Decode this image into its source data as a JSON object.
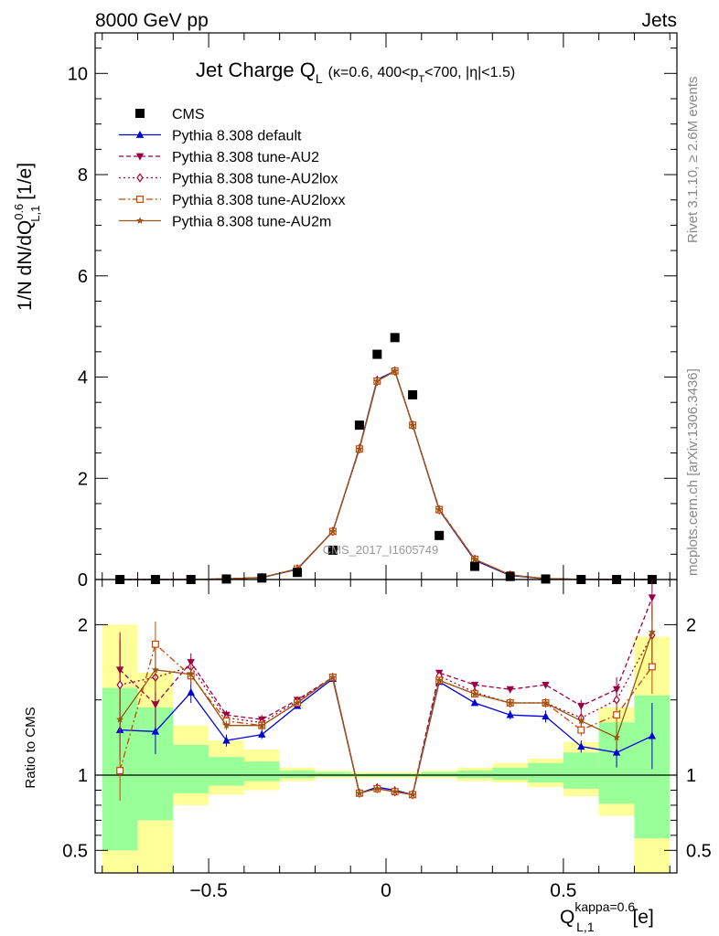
{
  "header": {
    "left": "8000 GeV pp",
    "right": "Jets"
  },
  "side_labels": {
    "rivet": "Rivet 3.1.10, ≥ 2.6M events",
    "mcplots": "mcplots.cern.ch [arXiv:1306.3436]"
  },
  "watermark": "CMS_2017_I1605749",
  "legend": [
    {
      "key": "cms",
      "label": "CMS"
    },
    {
      "key": "default",
      "label": "Pythia 8.308 default"
    },
    {
      "key": "au2",
      "label": "Pythia 8.308 tune-AU2"
    },
    {
      "key": "au2lox",
      "label": "Pythia 8.308 tune-AU2lox"
    },
    {
      "key": "au2loxx",
      "label": "Pythia 8.308 tune-AU2loxx"
    },
    {
      "key": "au2m",
      "label": "Pythia 8.308 tune-AU2m"
    }
  ],
  "colors": {
    "cms": "#000000",
    "default": "#0000dd",
    "au2": "#990044",
    "au2lox": "#aa0033",
    "au2loxx": "#cc4400",
    "au2m": "#995511",
    "band_inner": "#99ff99",
    "band_outer": "#ffff99"
  },
  "chart_data": {
    "type": "line",
    "title": {
      "main": "Jet Charge Q",
      "main_sub": "L",
      "cut": "(κ=0.6, 400<p",
      "cut_sub": "T",
      "cut_rest": "<700, |η|<1.5)"
    },
    "ylabel": {
      "pre": "1/N dN/dQ",
      "sup": "0.6",
      "sub": "L,1",
      "post": " [1/e]"
    },
    "xlabel": {
      "pre": "Q",
      "sup": "kappa=0.6",
      "sub": "L,1",
      "post": " [e]"
    },
    "ratio_ylabel": "Ratio to CMS",
    "xlim": [
      -0.82,
      0.82
    ],
    "ylim": [
      0,
      10.8
    ],
    "ratio_ylim": [
      0.35,
      2.3
    ],
    "xticks": [
      -0.5,
      0,
      0.5
    ],
    "xtick_labels": [
      "−0.5",
      "0",
      "0.5"
    ],
    "yticks": [
      0,
      2,
      4,
      6,
      8,
      10
    ],
    "ytick_labels": [
      "0",
      "2",
      "4",
      "6",
      "8",
      "10"
    ],
    "ratio_yticks": [
      0.5,
      1,
      2
    ],
    "ratio_ytick_labels": [
      "0.5",
      "1",
      "2"
    ],
    "x": [
      -0.75,
      -0.65,
      -0.55,
      -0.45,
      -0.35,
      -0.25,
      -0.15,
      -0.075,
      -0.025,
      0.025,
      0.075,
      0.15,
      0.25,
      0.35,
      0.45,
      0.55,
      0.65,
      0.75
    ],
    "bin_edges": [
      -0.8,
      -0.7,
      -0.6,
      -0.5,
      -0.4,
      -0.3,
      -0.2,
      -0.1,
      -0.05,
      0.0,
      0.05,
      0.1,
      0.2,
      0.3,
      0.4,
      0.5,
      0.6,
      0.7,
      0.8
    ],
    "cms": [
      0.0,
      0.0,
      0.0,
      0.01,
      0.03,
      0.14,
      0.58,
      3.05,
      4.45,
      4.78,
      3.65,
      0.87,
      0.26,
      0.06,
      0.01,
      0.0,
      0.0,
      0.0
    ],
    "band_inner": [
      [
        0.5,
        1.58
      ],
      [
        0.7,
        1.45
      ],
      [
        0.88,
        1.2
      ],
      [
        0.93,
        1.12
      ],
      [
        0.96,
        1.09
      ],
      [
        0.98,
        1.03
      ],
      [
        0.99,
        1.02
      ],
      [
        0.99,
        1.01
      ],
      [
        0.99,
        1.01
      ],
      [
        0.99,
        1.01
      ],
      [
        0.99,
        1.01
      ],
      [
        0.99,
        1.02
      ],
      [
        0.98,
        1.03
      ],
      [
        0.97,
        1.05
      ],
      [
        0.95,
        1.08
      ],
      [
        0.91,
        1.15
      ],
      [
        0.81,
        1.35
      ],
      [
        0.58,
        1.53
      ]
    ],
    "band_outer": [
      [
        0.35,
        2.0
      ],
      [
        0.35,
        1.68
      ],
      [
        0.8,
        1.33
      ],
      [
        0.87,
        1.23
      ],
      [
        0.9,
        1.17
      ],
      [
        0.96,
        1.05
      ],
      [
        0.98,
        1.03
      ],
      [
        0.98,
        1.02
      ],
      [
        0.98,
        1.02
      ],
      [
        0.98,
        1.02
      ],
      [
        0.98,
        1.02
      ],
      [
        0.98,
        1.03
      ],
      [
        0.96,
        1.05
      ],
      [
        0.95,
        1.08
      ],
      [
        0.92,
        1.11
      ],
      [
        0.86,
        1.22
      ],
      [
        0.73,
        1.45
      ],
      [
        0.35,
        1.92
      ]
    ],
    "series": [
      {
        "key": "default",
        "name": "Pythia 8.308 default",
        "marker": "triangle-up",
        "dash": "",
        "values": [
          0.0,
          0.0,
          0.0,
          0.012,
          0.038,
          0.2,
          0.95,
          2.6,
          3.95,
          4.12,
          3.05,
          1.37,
          0.38,
          0.08,
          0.015,
          0.003,
          0.0,
          0.0
        ],
        "ratio": [
          1.3,
          1.29,
          1.55,
          1.23,
          1.27,
          1.46,
          1.64,
          0.88,
          0.92,
          0.9,
          0.87,
          1.62,
          1.48,
          1.4,
          1.39,
          1.19,
          1.15,
          1.26
        ],
        "ratio_err": [
          0.2,
          0.15,
          0.07,
          0.04,
          0.03,
          0.02,
          0.01,
          0.01,
          0.01,
          0.01,
          0.01,
          0.01,
          0.02,
          0.03,
          0.04,
          0.04,
          0.1,
          0.22
        ]
      },
      {
        "key": "au2",
        "name": "Pythia 8.308 tune-AU2",
        "marker": "triangle-down",
        "dash": "5,3",
        "values": [
          0.0,
          0.0,
          0.0,
          0.013,
          0.04,
          0.21,
          0.95,
          2.58,
          3.92,
          4.12,
          3.05,
          1.39,
          0.4,
          0.09,
          0.016,
          0.003,
          0.0,
          0.0
        ],
        "ratio": [
          1.7,
          1.47,
          1.75,
          1.4,
          1.37,
          1.5,
          1.65,
          0.88,
          0.91,
          0.89,
          0.87,
          1.68,
          1.6,
          1.57,
          1.6,
          1.46,
          1.57,
          2.18
        ],
        "ratio_err": [
          0.25,
          0.15,
          0.06,
          0.03,
          0.03,
          0.02,
          0.01,
          0.01,
          0.01,
          0.01,
          0.01,
          0.01,
          0.02,
          0.02,
          0.02,
          0.04,
          0.08,
          0.15
        ]
      },
      {
        "key": "au2lox",
        "name": "Pythia 8.308 tune-AU2lox",
        "marker": "diamond-open",
        "dash": "2,3",
        "values": [
          0.0,
          0.0,
          0.0,
          0.013,
          0.04,
          0.21,
          0.95,
          2.58,
          3.92,
          4.12,
          3.05,
          1.38,
          0.4,
          0.09,
          0.016,
          0.003,
          0.0,
          0.0
        ],
        "ratio": [
          1.6,
          1.65,
          1.72,
          1.38,
          1.35,
          1.49,
          1.65,
          0.88,
          0.91,
          0.89,
          0.87,
          1.66,
          1.55,
          1.48,
          1.48,
          1.38,
          1.5,
          1.93
        ],
        "ratio_err": [
          0.3,
          0.2,
          0.06,
          0.03,
          0.03,
          0.02,
          0.01,
          0.01,
          0.01,
          0.01,
          0.01,
          0.01,
          0.02,
          0.02,
          0.03,
          0.04,
          0.08,
          0.2
        ]
      },
      {
        "key": "au2loxx",
        "name": "Pythia 8.308 tune-AU2loxx",
        "marker": "square-open",
        "dash": "7,3,2,3",
        "values": [
          0.0,
          0.0,
          0.0,
          0.013,
          0.04,
          0.21,
          0.95,
          2.58,
          3.92,
          4.12,
          3.05,
          1.38,
          0.4,
          0.09,
          0.016,
          0.003,
          0.0,
          0.0
        ],
        "ratio": [
          1.03,
          1.87,
          1.66,
          1.36,
          1.33,
          1.48,
          1.65,
          0.88,
          0.91,
          0.89,
          0.87,
          1.63,
          1.54,
          1.48,
          1.48,
          1.3,
          1.4,
          1.72
        ],
        "ratio_err": [
          0.2,
          0.15,
          0.06,
          0.03,
          0.03,
          0.02,
          0.01,
          0.01,
          0.01,
          0.01,
          0.01,
          0.01,
          0.02,
          0.02,
          0.03,
          0.04,
          0.08,
          0.18
        ]
      },
      {
        "key": "au2m",
        "name": "Pythia 8.308 tune-AU2m",
        "marker": "star",
        "dash": "",
        "values": [
          0.0,
          0.0,
          0.0,
          0.013,
          0.04,
          0.21,
          0.95,
          2.58,
          3.92,
          4.12,
          3.05,
          1.38,
          0.4,
          0.09,
          0.016,
          0.003,
          0.0,
          0.0
        ],
        "ratio": [
          1.37,
          1.7,
          1.67,
          1.33,
          1.33,
          1.48,
          1.65,
          0.88,
          0.91,
          0.89,
          0.87,
          1.63,
          1.54,
          1.48,
          1.48,
          1.36,
          1.25,
          1.95
        ],
        "ratio_err": [
          0.2,
          0.15,
          0.06,
          0.03,
          0.03,
          0.02,
          0.01,
          0.01,
          0.01,
          0.01,
          0.01,
          0.01,
          0.02,
          0.02,
          0.03,
          0.04,
          0.08,
          0.18
        ]
      }
    ]
  }
}
